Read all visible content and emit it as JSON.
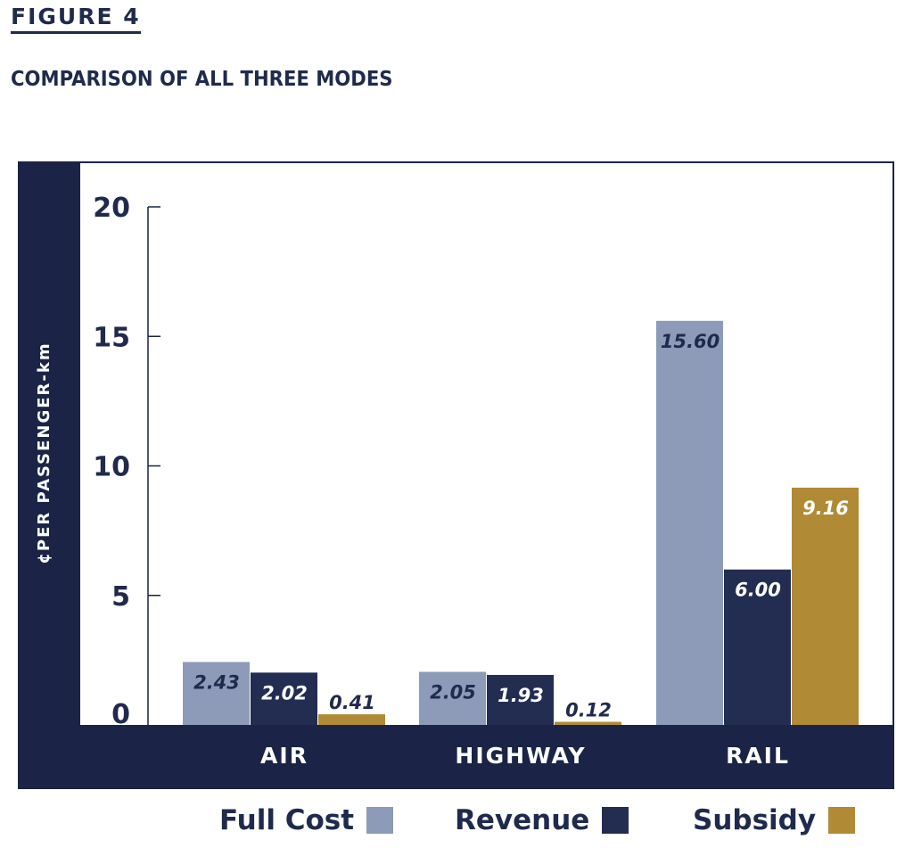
{
  "figure_label": "FIGURE 4",
  "figure_title": "COMPARISON OF ALL THREE MODES",
  "chart_data": {
    "type": "bar",
    "categories": [
      "AIR",
      "HIGHWAY",
      "RAIL"
    ],
    "series": [
      {
        "name": "Full Cost",
        "values": [
          2.43,
          2.05,
          15.6
        ],
        "labels": [
          "2.43",
          "2.05",
          "15.60"
        ],
        "color": "#8e9bb8"
      },
      {
        "name": "Revenue",
        "values": [
          2.02,
          1.93,
          6.0
        ],
        "labels": [
          "2.02",
          "1.93",
          "6.00"
        ],
        "color": "#232d52"
      },
      {
        "name": "Subsidy",
        "values": [
          0.41,
          0.12,
          9.16
        ],
        "labels": [
          "0.41",
          "0.12",
          "9.16"
        ],
        "color": "#b08a35"
      }
    ],
    "ylabel": "¢PER PASSENGER-km",
    "xlabel": "",
    "ylim": [
      0,
      20
    ],
    "yticks": [
      0,
      5,
      10,
      15,
      20
    ],
    "grid": false,
    "legend_position": "bottom"
  },
  "colors": {
    "frame": "#1b2447",
    "text": "#1f2a4d",
    "full_cost": "#8e9bb8",
    "revenue": "#232d52",
    "subsidy": "#b08a35"
  }
}
